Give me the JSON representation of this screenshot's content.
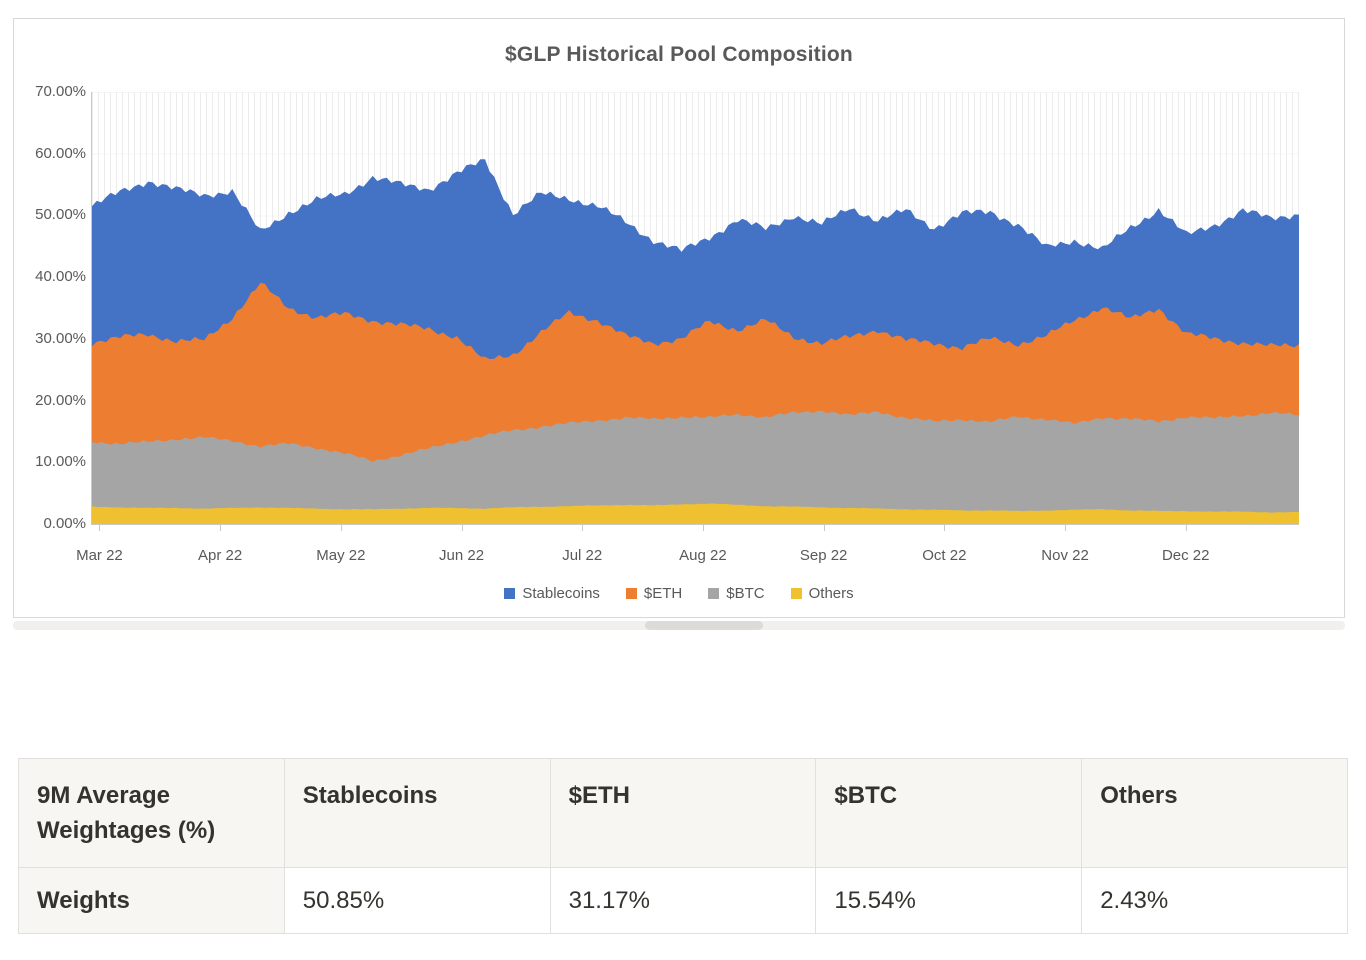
{
  "chart": {
    "title": "$GLP Historical Pool Composition",
    "y_ticks": [
      "70.00%",
      "60.00%",
      "50.00%",
      "40.00%",
      "30.00%",
      "20.00%",
      "10.00%",
      "0.00%"
    ],
    "x_labels": [
      "Mar 22",
      "Apr 22",
      "May 22",
      "Jun 22",
      "Jul 22",
      "Aug 22",
      "Sep 22",
      "Oct 22",
      "Nov 22",
      "Dec 22"
    ]
  },
  "chart_data": {
    "type": "area",
    "mode": "overlapping-not-stacked",
    "title": "$GLP Historical Pool Composition",
    "categories": [
      "Mar 22",
      "Apr 22",
      "May 22",
      "Jun 22",
      "Jul 22",
      "Aug 22",
      "Sep 22",
      "Oct 22",
      "Nov 22",
      "Dec 22"
    ],
    "x_note": "44 roughly weekly samples, Mar 2022 through late Dec 2022",
    "ylim": [
      0,
      70
    ],
    "y_tick_step": 10,
    "y_format": "percent",
    "grid": "minor-vertical",
    "legend_position": "bottom",
    "series": [
      {
        "name": "Stablecoins",
        "color": "#4472C4",
        "values": [
          51.5,
          53.8,
          55.6,
          54.2,
          53.3,
          54.0,
          47.3,
          50.5,
          52.5,
          53.5,
          56.2,
          55.0,
          54.3,
          56.8,
          59.0,
          50.3,
          53.5,
          52.8,
          51.5,
          49.0,
          46.0,
          44.2,
          46.5,
          49.3,
          47.8,
          50.0,
          48.5,
          51.3,
          49.2,
          50.8,
          48.0,
          50.3,
          50.6,
          48.5,
          44.8,
          46.0,
          44.5,
          48.0,
          51.0,
          46.8,
          48.5,
          50.8,
          49.5,
          50.3
        ]
      },
      {
        "name": "$ETH",
        "color": "#ED7D31",
        "values": [
          29.4,
          30.2,
          30.8,
          29.6,
          29.8,
          33.5,
          39.0,
          35.0,
          33.5,
          34.0,
          33.0,
          32.3,
          31.6,
          30.3,
          26.5,
          27.5,
          31.0,
          34.3,
          33.0,
          30.5,
          29.3,
          30.0,
          32.8,
          31.5,
          33.0,
          30.3,
          29.3,
          30.3,
          31.5,
          29.8,
          29.3,
          28.6,
          30.0,
          29.2,
          30.5,
          33.0,
          35.2,
          33.2,
          35.0,
          30.8,
          30.0,
          29.4,
          28.8,
          29.0
        ]
      },
      {
        "name": "$BTC",
        "color": "#A5A5A5",
        "values": [
          13.4,
          13.0,
          13.3,
          13.8,
          14.0,
          13.5,
          12.6,
          13.0,
          12.4,
          11.4,
          10.2,
          11.2,
          12.2,
          13.4,
          14.3,
          15.2,
          15.8,
          16.3,
          16.8,
          17.2,
          17.0,
          17.4,
          17.2,
          17.8,
          17.3,
          18.0,
          18.4,
          17.6,
          18.2,
          17.2,
          16.6,
          17.0,
          16.5,
          17.4,
          17.0,
          16.2,
          17.3,
          17.0,
          16.6,
          17.4,
          17.1,
          17.6,
          18.0,
          17.6
        ]
      },
      {
        "name": "Others",
        "color": "#EFC02F",
        "values": [
          2.8,
          2.7,
          2.6,
          2.6,
          2.5,
          2.6,
          2.7,
          2.6,
          2.5,
          2.4,
          2.4,
          2.5,
          2.6,
          2.6,
          2.5,
          2.7,
          2.8,
          2.9,
          3.0,
          3.1,
          3.0,
          3.2,
          3.3,
          3.1,
          2.9,
          2.8,
          2.7,
          2.6,
          2.5,
          2.4,
          2.3,
          2.2,
          2.2,
          2.1,
          2.2,
          2.3,
          2.4,
          2.2,
          2.1,
          2.1,
          2.0,
          2.0,
          1.9,
          1.9
        ]
      }
    ]
  },
  "table": {
    "headers": [
      "9M Average Weightages (%)",
      "Stablecoins",
      "$ETH",
      "$BTC",
      "Others"
    ],
    "row_label": "Weights",
    "values": [
      "50.85%",
      "31.17%",
      "15.54%",
      "2.43%"
    ]
  }
}
